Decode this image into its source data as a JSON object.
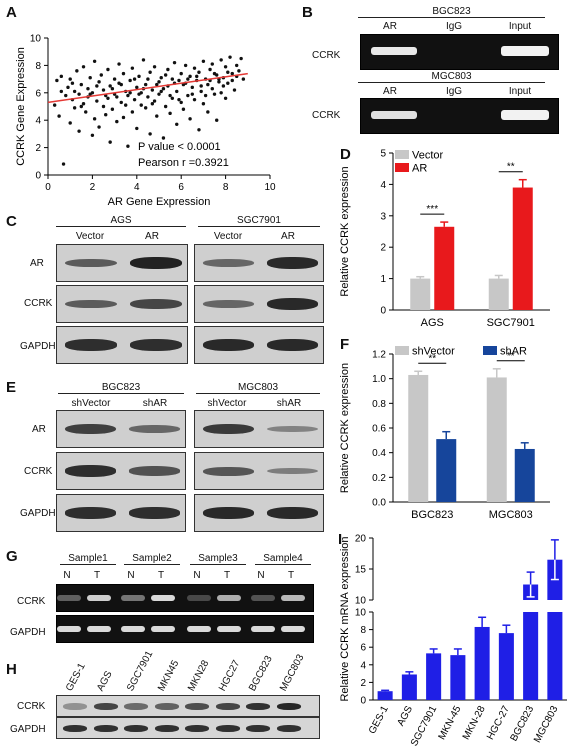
{
  "panels": {
    "a": {
      "letter": "A"
    },
    "b": {
      "letter": "B"
    },
    "c": {
      "letter": "C"
    },
    "d": {
      "letter": "D"
    },
    "e": {
      "letter": "E"
    },
    "f": {
      "letter": "F"
    },
    "g": {
      "letter": "G"
    },
    "h": {
      "letter": "H"
    },
    "i": {
      "letter": "I"
    }
  },
  "chart_data": [
    {
      "id": "A",
      "type": "scatter",
      "xlabel": "AR Gene Expression",
      "ylabel": "CCRK Gene Expression",
      "xlim": [
        0,
        10
      ],
      "ylim": [
        0,
        10
      ],
      "xticks": [
        "0",
        "2",
        "4",
        "6",
        "8",
        "10"
      ],
      "yticks": [
        "0",
        "2",
        "4",
        "6",
        "8",
        "10"
      ],
      "fit_line": {
        "x": [
          0,
          9
        ],
        "y": [
          5.3,
          7.4
        ]
      },
      "annotations": [
        "P value  < 0.0001",
        "Pearson  r =0.3921"
      ],
      "points": [
        [
          0.3,
          5.1
        ],
        [
          0.4,
          6.9
        ],
        [
          0.5,
          4.3
        ],
        [
          0.6,
          7.2
        ],
        [
          0.7,
          0.8
        ],
        [
          0.8,
          5.8
        ],
        [
          0.9,
          6.4
        ],
        [
          1.0,
          3.8
        ],
        [
          1.0,
          7.0
        ],
        [
          1.1,
          5.5
        ],
        [
          1.2,
          6.1
        ],
        [
          1.2,
          4.9
        ],
        [
          1.3,
          7.6
        ],
        [
          1.4,
          5.9
        ],
        [
          1.4,
          3.2
        ],
        [
          1.5,
          6.6
        ],
        [
          1.6,
          5.2
        ],
        [
          1.6,
          7.9
        ],
        [
          1.7,
          4.6
        ],
        [
          1.8,
          6.3
        ],
        [
          1.8,
          5.7
        ],
        [
          1.9,
          7.1
        ],
        [
          2.0,
          2.9
        ],
        [
          2.0,
          6.0
        ],
        [
          2.1,
          4.1
        ],
        [
          2.1,
          8.3
        ],
        [
          2.2,
          5.4
        ],
        [
          2.3,
          6.8
        ],
        [
          2.3,
          3.5
        ],
        [
          2.4,
          7.3
        ],
        [
          2.5,
          5.0
        ],
        [
          2.5,
          6.2
        ],
        [
          2.6,
          4.4
        ],
        [
          2.7,
          7.7
        ],
        [
          2.7,
          5.6
        ],
        [
          2.8,
          2.4
        ],
        [
          2.8,
          6.5
        ],
        [
          2.9,
          4.8
        ],
        [
          3.0,
          7.0
        ],
        [
          3.0,
          5.9
        ],
        [
          3.1,
          3.9
        ],
        [
          3.2,
          6.7
        ],
        [
          3.2,
          8.1
        ],
        [
          3.3,
          5.3
        ],
        [
          3.4,
          4.2
        ],
        [
          3.4,
          7.4
        ],
        [
          3.5,
          6.1
        ],
        [
          3.6,
          2.1
        ],
        [
          3.6,
          5.8
        ],
        [
          3.7,
          6.9
        ],
        [
          3.8,
          4.6
        ],
        [
          3.8,
          7.8
        ],
        [
          3.9,
          5.5
        ],
        [
          4.0,
          6.4
        ],
        [
          4.0,
          3.4
        ],
        [
          4.1,
          7.2
        ],
        [
          4.2,
          5.1
        ],
        [
          4.2,
          6.0
        ],
        [
          4.3,
          8.4
        ],
        [
          4.4,
          4.9
        ],
        [
          4.4,
          6.6
        ],
        [
          4.5,
          5.7
        ],
        [
          4.6,
          7.5
        ],
        [
          4.6,
          3.0
        ],
        [
          4.7,
          6.2
        ],
        [
          4.8,
          5.4
        ],
        [
          4.8,
          7.9
        ],
        [
          4.9,
          4.3
        ],
        [
          5.0,
          6.8
        ],
        [
          5.0,
          5.9
        ],
        [
          5.1,
          7.1
        ],
        [
          5.2,
          2.7
        ],
        [
          5.2,
          6.3
        ],
        [
          5.3,
          5.0
        ],
        [
          5.4,
          7.7
        ],
        [
          5.4,
          6.5
        ],
        [
          5.5,
          4.5
        ],
        [
          5.6,
          7.0
        ],
        [
          5.6,
          5.6
        ],
        [
          5.7,
          8.2
        ],
        [
          5.8,
          6.1
        ],
        [
          5.8,
          3.7
        ],
        [
          5.9,
          6.9
        ],
        [
          6.0,
          5.3
        ],
        [
          6.0,
          7.4
        ],
        [
          6.1,
          4.8
        ],
        [
          6.2,
          6.7
        ],
        [
          6.2,
          8.0
        ],
        [
          6.3,
          5.8
        ],
        [
          6.4,
          7.2
        ],
        [
          6.4,
          4.1
        ],
        [
          6.5,
          6.4
        ],
        [
          6.6,
          7.8
        ],
        [
          6.6,
          5.5
        ],
        [
          6.7,
          6.9
        ],
        [
          6.8,
          3.3
        ],
        [
          6.8,
          7.5
        ],
        [
          6.9,
          6.1
        ],
        [
          7.0,
          8.3
        ],
        [
          7.0,
          5.2
        ],
        [
          7.1,
          7.0
        ],
        [
          7.2,
          6.6
        ],
        [
          7.2,
          4.6
        ],
        [
          7.3,
          7.7
        ],
        [
          7.4,
          6.3
        ],
        [
          7.4,
          8.1
        ],
        [
          7.5,
          5.9
        ],
        [
          7.6,
          7.3
        ],
        [
          7.6,
          4.0
        ],
        [
          7.7,
          6.8
        ],
        [
          7.8,
          8.4
        ],
        [
          7.8,
          6.0
        ],
        [
          7.9,
          7.1
        ],
        [
          8.0,
          5.6
        ],
        [
          8.0,
          7.9
        ],
        [
          8.1,
          6.7
        ],
        [
          8.2,
          8.6
        ],
        [
          8.3,
          7.4
        ],
        [
          8.4,
          6.2
        ],
        [
          8.5,
          8.0
        ],
        [
          8.6,
          7.6
        ],
        [
          8.7,
          8.5
        ],
        [
          8.8,
          7.0
        ],
        [
          0.6,
          6.1
        ],
        [
          1.1,
          6.7
        ],
        [
          1.5,
          5.0
        ],
        [
          1.9,
          5.9
        ],
        [
          2.2,
          6.5
        ],
        [
          2.6,
          5.8
        ],
        [
          2.9,
          6.3
        ],
        [
          3.1,
          5.7
        ],
        [
          3.3,
          6.6
        ],
        [
          3.5,
          5.1
        ],
        [
          3.7,
          6.0
        ],
        [
          3.9,
          7.0
        ],
        [
          4.1,
          5.9
        ],
        [
          4.3,
          6.3
        ],
        [
          4.5,
          7.0
        ],
        [
          4.7,
          5.2
        ],
        [
          4.9,
          6.6
        ],
        [
          5.1,
          6.1
        ],
        [
          5.3,
          7.3
        ],
        [
          5.5,
          5.8
        ],
        [
          5.7,
          6.7
        ],
        [
          5.9,
          5.5
        ],
        [
          6.1,
          6.6
        ],
        [
          6.3,
          7.0
        ],
        [
          6.5,
          5.9
        ],
        [
          6.7,
          7.2
        ],
        [
          6.9,
          6.5
        ],
        [
          7.1,
          5.8
        ],
        [
          7.3,
          6.9
        ],
        [
          7.5,
          7.4
        ],
        [
          7.7,
          7.0
        ],
        [
          7.9,
          6.5
        ],
        [
          8.1,
          7.5
        ],
        [
          8.3,
          6.9
        ],
        [
          8.5,
          7.2
        ]
      ]
    },
    {
      "id": "D",
      "type": "bar",
      "ylabel": "Relative CCRK expression",
      "ylim": [
        0,
        5
      ],
      "yticks": [
        "0",
        "1",
        "2",
        "3",
        "4",
        "5"
      ],
      "categories": [
        "AGS",
        "SGC7901"
      ],
      "series": [
        {
          "name": "Vector",
          "color": "#c7c7c7",
          "values": [
            1.0,
            1.0
          ],
          "errors": [
            0.06,
            0.1
          ]
        },
        {
          "name": "AR",
          "color": "#e8191c",
          "values": [
            2.65,
            3.9
          ],
          "errors": [
            0.15,
            0.25
          ]
        }
      ],
      "significance": [
        "***",
        "**"
      ],
      "legend": "top-left"
    },
    {
      "id": "F",
      "type": "bar",
      "ylabel": "Relative CCRK expression",
      "ylim": [
        0,
        1.2
      ],
      "yticks": [
        "0.0",
        "0.2",
        "0.4",
        "0.6",
        "0.8",
        "1.0",
        "1.2"
      ],
      "categories": [
        "BGC823",
        "MGC803"
      ],
      "series": [
        {
          "name": "shVector",
          "color": "#c7c7c7",
          "values": [
            1.03,
            1.01
          ],
          "errors": [
            0.03,
            0.07
          ]
        },
        {
          "name": "shAR",
          "color": "#16459b",
          "values": [
            0.51,
            0.43
          ],
          "errors": [
            0.06,
            0.05
          ]
        }
      ],
      "significance": [
        "**",
        "**"
      ],
      "legend": "top"
    },
    {
      "id": "I",
      "type": "bar",
      "ylabel": "Relative CCRK mRNA expression",
      "broken_axis": {
        "lower": [
          0,
          10
        ],
        "upper": [
          10,
          20
        ]
      },
      "yticks_lower": [
        "0",
        "2",
        "4",
        "6",
        "8",
        "10"
      ],
      "yticks_upper": [
        "10",
        "15",
        "20"
      ],
      "categories": [
        "GES-1",
        "AGS",
        "SGC7901",
        "MKN-45",
        "MKN-28",
        "HGC-27",
        "BGC823",
        "MGC803"
      ],
      "values": [
        1.0,
        2.9,
        5.3,
        5.1,
        8.3,
        7.6,
        12.5,
        16.5
      ],
      "errors": [
        0.1,
        0.3,
        0.5,
        0.7,
        1.1,
        0.9,
        2.0,
        3.2
      ],
      "color": "#1f1fe6"
    }
  ],
  "blots": {
    "b": {
      "rows": [
        {
          "header": "BGC823",
          "label": "CCRK",
          "cols": [
            "AR",
            "IgG",
            "Input"
          ]
        },
        {
          "header": "MGC803",
          "label": "CCRK",
          "cols": [
            "AR",
            "IgG",
            "Input"
          ]
        }
      ]
    },
    "c": {
      "groups": [
        "AGS",
        "SGC7901"
      ],
      "lanes": [
        "Vector",
        "AR",
        "Vector",
        "AR"
      ],
      "rows": [
        "AR",
        "CCRK",
        "GAPDH"
      ]
    },
    "e": {
      "groups": [
        "BGC823",
        "MGC803"
      ],
      "lanes": [
        "shVector",
        "shAR",
        "shVector",
        "shAR"
      ],
      "rows": [
        "AR",
        "CCRK",
        "GAPDH"
      ]
    },
    "g": {
      "samples": [
        "Sample1",
        "Sample2",
        "Sample3",
        "Sample4"
      ],
      "lanes": [
        "N",
        "T",
        "N",
        "T",
        "N",
        "T",
        "N",
        "T"
      ],
      "rows": [
        "CCRK",
        "GAPDH"
      ]
    },
    "h": {
      "lanes": [
        "GES-1",
        "AGS",
        "SGC7901",
        "MKN45",
        "MKN28",
        "HGC27",
        "BGC823",
        "MGC803"
      ],
      "rows": [
        "CCRK",
        "GAPDH"
      ]
    }
  }
}
